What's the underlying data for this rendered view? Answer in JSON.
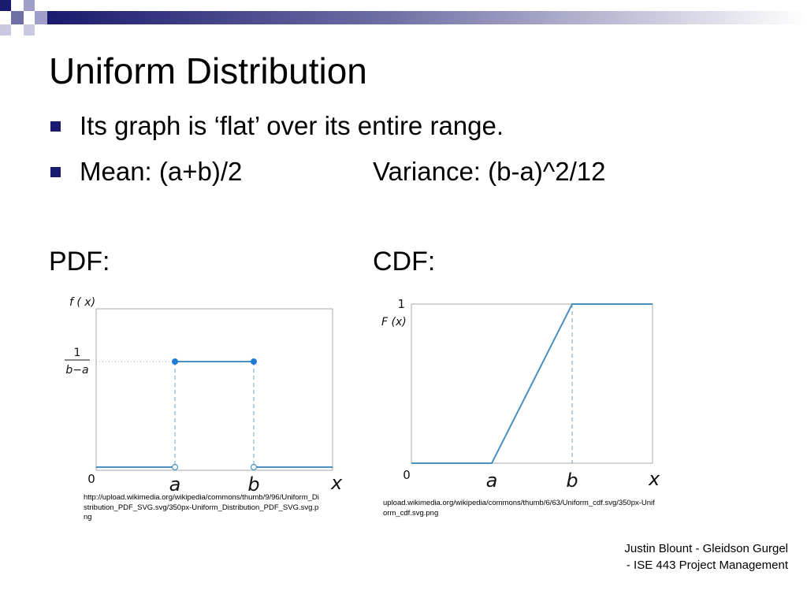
{
  "slide": {
    "title": "Uniform Distribution",
    "bullets": [
      "Its graph is ‘flat’ over its entire range.",
      "Mean: (a+b)/2"
    ],
    "variance": "Variance: (b-a)^2/12",
    "pdf_label": "PDF:",
    "cdf_label": "CDF:",
    "pdf_caption": "http://upload.wikimedia.org/wikipedia/commons/thumb/9/96/Uniform_Distribution_PDF_SVG.svg/350px-Uniform_Distribution_PDF_SVG.svg.png",
    "cdf_caption": "upload.wikimedia.org/wikipedia/commons/thumb/6/63/Uniform_cdf.svg/350px-Uniform_cdf.svg.png",
    "footer": "Justin Blount - Gleidson Gurgel - ISE 443 Project Management"
  },
  "colors": {
    "accent": "#1a1a6e",
    "plot_line": "#4a8fc0",
    "plot_point": "#1f7dd6",
    "axis_frame": "#aaaaaa"
  },
  "chart_data": [
    {
      "type": "line",
      "xlabel": "x",
      "ylabel": "f ( x)",
      "x_tick_labels": [
        "0",
        "a",
        "b"
      ],
      "y_tick_label_numerator": "1",
      "y_tick_label_denominator": "b−a",
      "series": [
        {
          "points": [
            [
              0,
              0
            ],
            [
              1,
              0
            ]
          ]
        },
        {
          "points": [
            [
              1,
              1
            ],
            [
              2,
              1
            ]
          ]
        },
        {
          "points": [
            [
              2,
              0
            ],
            [
              3,
              0
            ]
          ]
        }
      ],
      "filled_points": [
        [
          1,
          1
        ],
        [
          2,
          1
        ]
      ],
      "open_points": [
        [
          1,
          0
        ],
        [
          2,
          0
        ]
      ],
      "dashed_guides": [
        1,
        2
      ],
      "xlim": [
        0,
        3
      ],
      "ylim": [
        0,
        1
      ]
    },
    {
      "type": "line",
      "xlabel": "x",
      "ylabel": "F (x)",
      "x_tick_labels": [
        "0",
        "a",
        "b"
      ],
      "y_tick_labels": [
        "1"
      ],
      "series": [
        {
          "points": [
            [
              0,
              0
            ],
            [
              1,
              0
            ],
            [
              2,
              1
            ],
            [
              3,
              1
            ]
          ]
        }
      ],
      "dashed_guides": [
        2
      ],
      "xlim": [
        0,
        3
      ],
      "ylim": [
        0,
        1
      ]
    }
  ]
}
